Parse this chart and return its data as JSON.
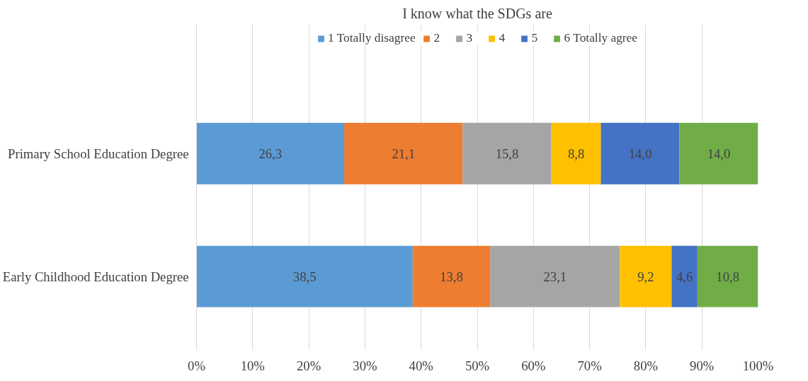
{
  "chart_data": {
    "type": "bar",
    "orientation": "horizontal",
    "stacked": true,
    "title": "I know what the SDGs are",
    "categories": [
      "Primary School Education Degree",
      "Early Childhood Education Degree"
    ],
    "series": [
      {
        "name": "1 Totally disagree",
        "color": "#5b9bd5",
        "values": [
          26.3,
          38.5
        ],
        "value_labels": [
          "26,3",
          "38,5"
        ]
      },
      {
        "name": "2",
        "color": "#ed7d31",
        "values": [
          21.1,
          13.8
        ],
        "value_labels": [
          "21,1",
          "13,8"
        ]
      },
      {
        "name": "3",
        "color": "#a5a5a5",
        "values": [
          15.8,
          23.1
        ],
        "value_labels": [
          "15,8",
          "23,1"
        ]
      },
      {
        "name": "4",
        "color": "#ffc000",
        "values": [
          8.8,
          9.2
        ],
        "value_labels": [
          "8,8",
          "9,2"
        ]
      },
      {
        "name": "5",
        "color": "#4472c4",
        "values": [
          14.0,
          4.6
        ],
        "value_labels": [
          "14,0",
          "4,6"
        ]
      },
      {
        "name": "6 Totally agree",
        "color": "#70ad47",
        "values": [
          14.0,
          10.8
        ],
        "value_labels": [
          "14,0",
          "10,8"
        ]
      }
    ],
    "xlim": [
      0,
      100
    ],
    "xticks": [
      {
        "value": 0,
        "label": "0%"
      },
      {
        "value": 10,
        "label": "10%"
      },
      {
        "value": 20,
        "label": "20%"
      },
      {
        "value": 30,
        "label": "30%"
      },
      {
        "value": 40,
        "label": "40%"
      },
      {
        "value": 50,
        "label": "50%"
      },
      {
        "value": 60,
        "label": "60%"
      },
      {
        "value": 70,
        "label": "70%"
      },
      {
        "value": 80,
        "label": "80%"
      },
      {
        "value": 90,
        "label": "90%"
      },
      {
        "value": 100,
        "label": "100%"
      }
    ],
    "grid": "x",
    "legend": "top"
  }
}
